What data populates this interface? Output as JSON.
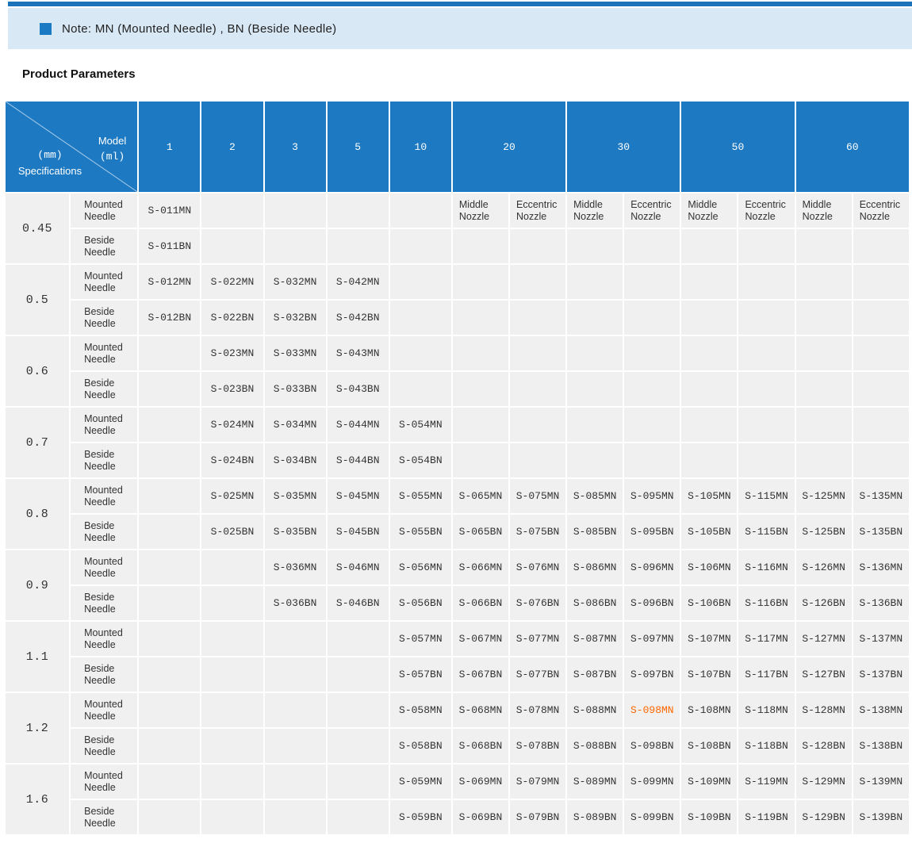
{
  "note": {
    "text": "Note: MN (Mounted Needle) , BN (Beside Needle)",
    "icon_color": "#1b7ac4"
  },
  "title": "Product Parameters",
  "table": {
    "corner": {
      "top_label": "Model",
      "top_unit": "(ml)",
      "bottom_unit": "(mm)",
      "bottom_label": "Specifications"
    },
    "ml_columns": [
      {
        "label": "1",
        "span": 1
      },
      {
        "label": "2",
        "span": 1
      },
      {
        "label": "3",
        "span": 1
      },
      {
        "label": "5",
        "span": 1
      },
      {
        "label": "10",
        "span": 1
      },
      {
        "label": "20",
        "span": 2
      },
      {
        "label": "30",
        "span": 2
      },
      {
        "label": "50",
        "span": 2
      },
      {
        "label": "60",
        "span": 2
      }
    ],
    "nozzle_sublabels": [
      "Middle Nozzle",
      "Eccentric Nozzle",
      "Middle Nozzle",
      "Eccentric Nozzle",
      "Middle Nozzle",
      "Eccentric Nozzle",
      "Middle Nozzle",
      "Eccentric Nozzle"
    ],
    "row_labels": {
      "mn": "Mounted Needle",
      "bn": "Beside Needle"
    },
    "rows": [
      {
        "spec": "0.45",
        "mn": [
          "S-011MN",
          "",
          "",
          "",
          "",
          "",
          "",
          "",
          "",
          "",
          "",
          "",
          ""
        ],
        "bn": [
          "S-011BN",
          "",
          "",
          "",
          "",
          "",
          "",
          "",
          "",
          "",
          "",
          "",
          ""
        ]
      },
      {
        "spec": "0.5",
        "mn": [
          "S-012MN",
          "S-022MN",
          "S-032MN",
          "S-042MN",
          "",
          "",
          "",
          "",
          "",
          "",
          "",
          "",
          ""
        ],
        "bn": [
          "S-012BN",
          "S-022BN",
          "S-032BN",
          "S-042BN",
          "",
          "",
          "",
          "",
          "",
          "",
          "",
          "",
          ""
        ]
      },
      {
        "spec": "0.6",
        "mn": [
          "",
          "S-023MN",
          "S-033MN",
          "S-043MN",
          "",
          "",
          "",
          "",
          "",
          "",
          "",
          "",
          ""
        ],
        "bn": [
          "",
          "S-023BN",
          "S-033BN",
          "S-043BN",
          "",
          "",
          "",
          "",
          "",
          "",
          "",
          "",
          ""
        ]
      },
      {
        "spec": "0.7",
        "mn": [
          "",
          "S-024MN",
          "S-034MN",
          "S-044MN",
          "S-054MN",
          "",
          "",
          "",
          "",
          "",
          "",
          "",
          ""
        ],
        "bn": [
          "",
          "S-024BN",
          "S-034BN",
          "S-044BN",
          "S-054BN",
          "",
          "",
          "",
          "",
          "",
          "",
          "",
          ""
        ]
      },
      {
        "spec": "0.8",
        "mn": [
          "",
          "S-025MN",
          "S-035MN",
          "S-045MN",
          "S-055MN",
          "S-065MN",
          "S-075MN",
          "S-085MN",
          "S-095MN",
          "S-105MN",
          "S-115MN",
          "S-125MN",
          "S-135MN"
        ],
        "bn": [
          "",
          "S-025BN",
          "S-035BN",
          "S-045BN",
          "S-055BN",
          "S-065BN",
          "S-075BN",
          "S-085BN",
          "S-095BN",
          "S-105BN",
          "S-115BN",
          "S-125BN",
          "S-135BN"
        ]
      },
      {
        "spec": "0.9",
        "mn": [
          "",
          "",
          "S-036MN",
          "S-046MN",
          "S-056MN",
          "S-066MN",
          "S-076MN",
          "S-086MN",
          "S-096MN",
          "S-106MN",
          "S-116MN",
          "S-126MN",
          "S-136MN"
        ],
        "bn": [
          "",
          "",
          "S-036BN",
          "S-046BN",
          "S-056BN",
          "S-066BN",
          "S-076BN",
          "S-086BN",
          "S-096BN",
          "S-106BN",
          "S-116BN",
          "S-126BN",
          "S-136BN"
        ]
      },
      {
        "spec": "1.1",
        "mn": [
          "",
          "",
          "",
          "",
          "S-057MN",
          "S-067MN",
          "S-077MN",
          "S-087MN",
          "S-097MN",
          "S-107MN",
          "S-117MN",
          "S-127MN",
          "S-137MN"
        ],
        "bn": [
          "",
          "",
          "",
          "",
          "S-057BN",
          "S-067BN",
          "S-077BN",
          "S-087BN",
          "S-097BN",
          "S-107BN",
          "S-117BN",
          "S-127BN",
          "S-137BN"
        ]
      },
      {
        "spec": "1.2",
        "mn": [
          "",
          "",
          "",
          "",
          "S-058MN",
          "S-068MN",
          "S-078MN",
          "S-088MN",
          "S-098MN",
          "S-108MN",
          "S-118MN",
          "S-128MN",
          "S-138MN"
        ],
        "bn": [
          "",
          "",
          "",
          "",
          "S-058BN",
          "S-068BN",
          "S-078BN",
          "S-088BN",
          "S-098BN",
          "S-108BN",
          "S-118BN",
          "S-128BN",
          "S-138BN"
        ]
      },
      {
        "spec": "1.6",
        "mn": [
          "",
          "",
          "",
          "",
          "S-059MN",
          "S-069MN",
          "S-079MN",
          "S-089MN",
          "S-099MN",
          "S-109MN",
          "S-119MN",
          "S-129MN",
          "S-139MN"
        ],
        "bn": [
          "",
          "",
          "",
          "",
          "S-059BN",
          "S-069BN",
          "S-079BN",
          "S-089BN",
          "S-099BN",
          "S-109BN",
          "S-119BN",
          "S-129BN",
          "S-139BN"
        ]
      }
    ],
    "highlight": {
      "spec": "1.2",
      "series": "mn",
      "col": 8,
      "color": "#ff6600",
      "value": "S-098MN"
    },
    "colors": {
      "header_bg": "#1d79c2",
      "body_bg": "#f0f0f0",
      "accent_bar": "#1c73ba",
      "note_band_bg": "#d9e8f5",
      "text": "#333333"
    }
  }
}
